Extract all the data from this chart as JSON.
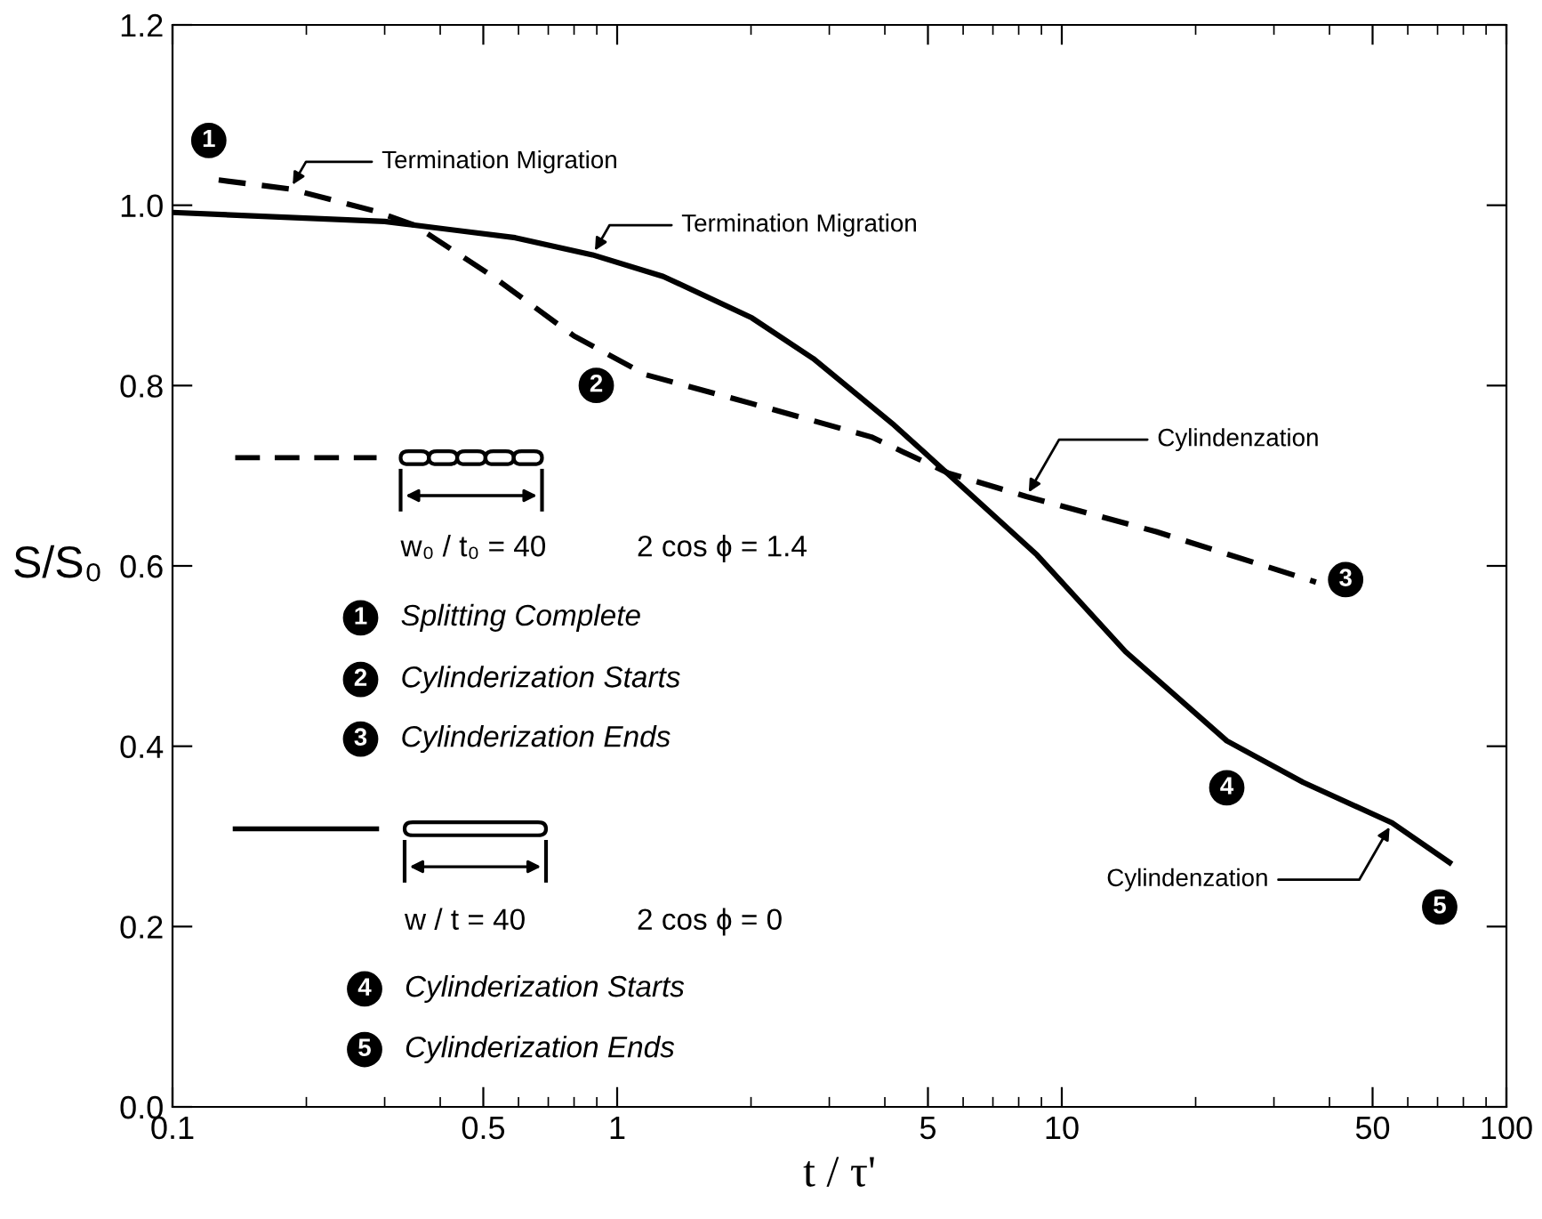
{
  "chart_data": {
    "type": "line",
    "xlabel": "t / τ'",
    "ylabel": "S/S₀",
    "log": "x",
    "xlim": [
      0.1,
      100
    ],
    "ylim": [
      0.0,
      1.2
    ],
    "xticks": [
      {
        "value": 0.1,
        "label": "0.1"
      },
      {
        "value": 0.5,
        "label": "0.5"
      },
      1,
      5,
      10,
      50,
      100
    ],
    "yticks": [
      {
        "value": 0.0,
        "label": "0.0"
      },
      0.2,
      0.4,
      0.6,
      0.8,
      {
        "value": 1.0,
        "label": "1.0"
      },
      1.2
    ],
    "grid": false,
    "series": [
      {
        "color": "#000000",
        "line_style": "dashed",
        "x": [
          0.127,
          0.184,
          0.283,
          0.35,
          0.525,
          0.8,
          1.16,
          2.01,
          3.73,
          5.55,
          8.32,
          16.3,
          37.3
        ],
        "values": [
          1.028,
          1.018,
          0.994,
          0.978,
          0.921,
          0.855,
          0.812,
          0.78,
          0.743,
          0.703,
          0.677,
          0.638,
          0.582
        ]
      },
      {
        "color": "#000000",
        "line_style": "solid",
        "x": [
          0.1,
          0.3,
          0.59,
          0.88,
          1.27,
          2.01,
          2.76,
          4.2,
          5.06,
          8.8,
          13.9,
          23.5,
          34.9,
          55.3,
          74.5
        ],
        "values": [
          0.992,
          0.982,
          0.964,
          0.945,
          0.921,
          0.875,
          0.83,
          0.756,
          0.72,
          0.612,
          0.505,
          0.406,
          0.36,
          0.315,
          0.271
        ]
      }
    ],
    "annotations": [
      {
        "text": "1",
        "x": 0.127,
        "y": 1.028
      },
      {
        "text": "Termination Migration",
        "x": 0.184,
        "y": 1.018
      },
      {
        "text": "Termination Migration",
        "x": 0.88,
        "y": 0.945
      },
      {
        "text": "2",
        "x": 0.8,
        "y": 0.855
      },
      {
        "text": "Cylindenzation",
        "x": 8.32,
        "y": 0.677
      },
      {
        "text": "3",
        "x": 37.3,
        "y": 0.582
      },
      {
        "text": "4",
        "x": 23.5,
        "y": 0.406
      },
      {
        "text": "Cylindenzation",
        "x": 55.3,
        "y": 0.315
      },
      {
        "text": "5",
        "x": 74.5,
        "y": 0.271
      },
      "w₀ / t₀ = 40",
      "2 cos ϕ = 1.4",
      "1",
      "Splitting Complete",
      "2",
      "Cylinderization Starts",
      "3",
      "Cylinderization Ends",
      "w / t = 40",
      "2 cos ϕ = 0",
      "4",
      "Cylinderization Starts",
      "5",
      "Cylinderization Ends"
    ]
  }
}
